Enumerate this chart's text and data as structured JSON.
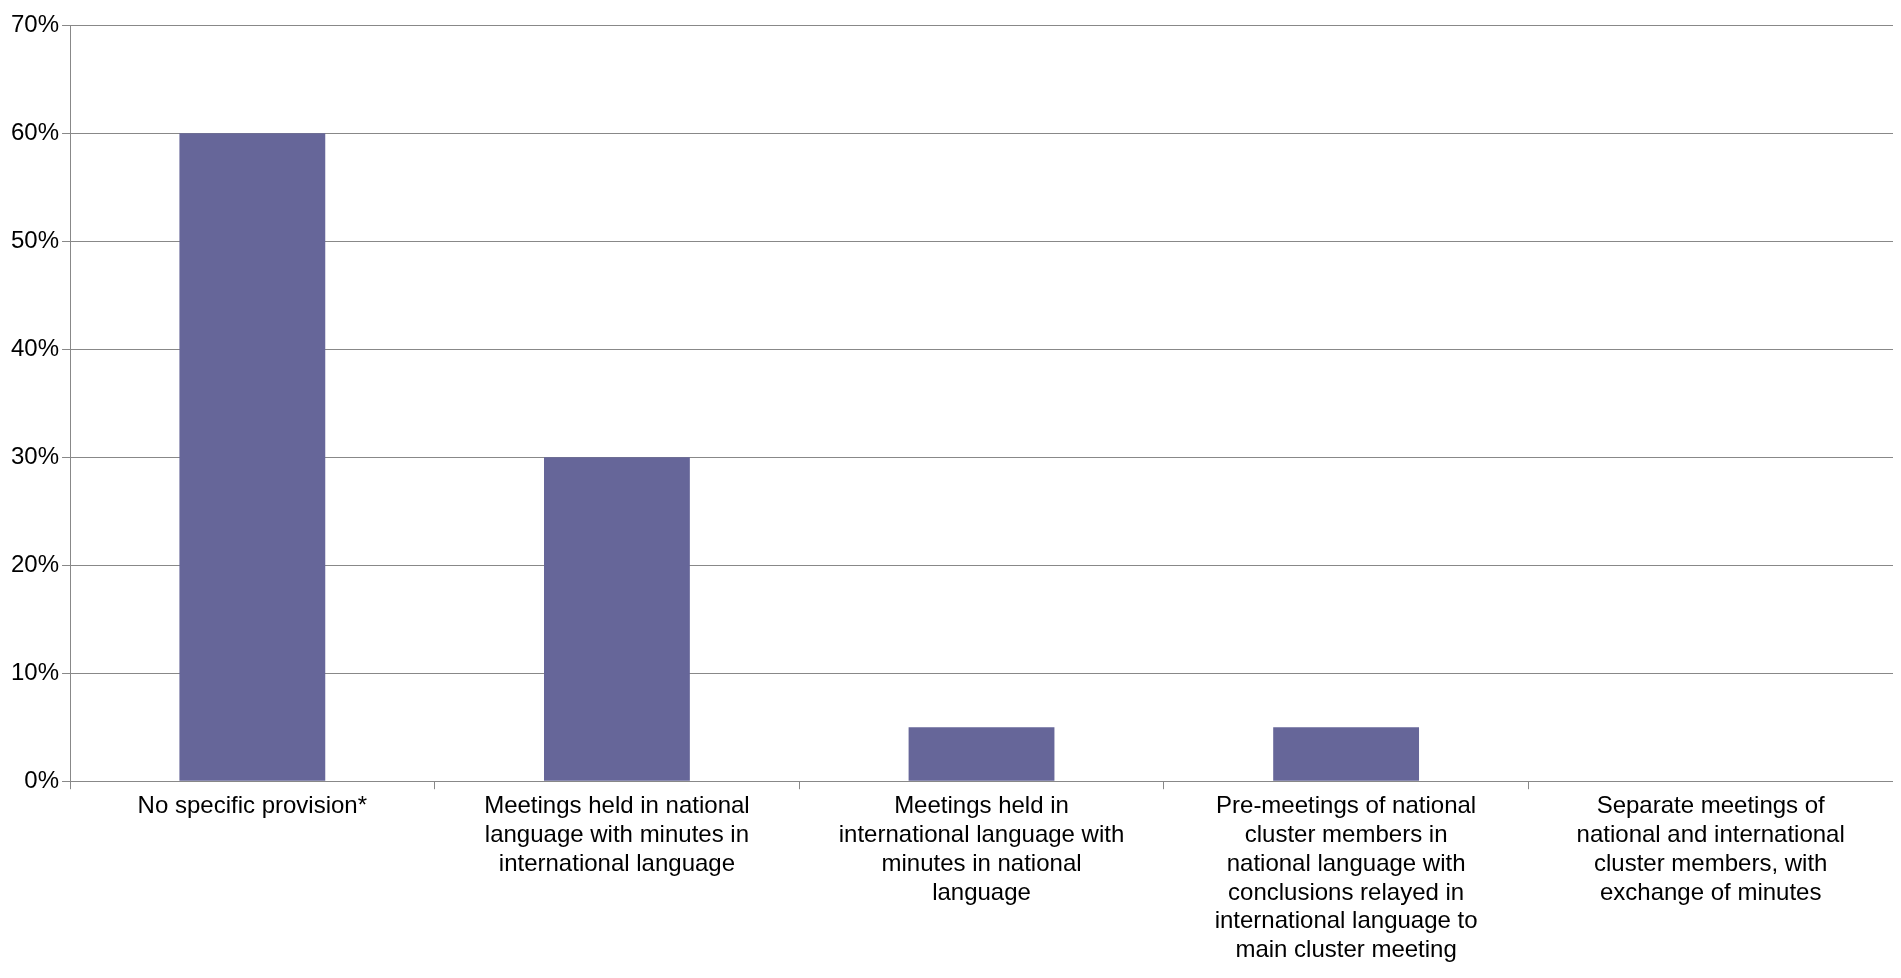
{
  "chart_data": {
    "type": "bar",
    "categories": [
      "No specific provision*",
      "Meetings held in national language with minutes in international language",
      "Meetings held in international language with minutes in national language",
      "Pre-meetings of national cluster members in national language with conclusions relayed in international language to main cluster meeting",
      "Separate meetings of national and international cluster members, with exchange of minutes"
    ],
    "values": [
      60,
      30,
      5,
      5,
      0
    ],
    "color": "#666699",
    "ylim": [
      0,
      70
    ],
    "yticks": [
      {
        "value": 0,
        "label": "0%"
      },
      {
        "value": 10,
        "label": "10%"
      },
      {
        "value": 20,
        "label": "20%"
      },
      {
        "value": 30,
        "label": "30%"
      },
      {
        "value": 40,
        "label": "40%"
      },
      {
        "value": 50,
        "label": "50%"
      },
      {
        "value": 60,
        "label": "60%"
      },
      {
        "value": 70,
        "label": "70%"
      }
    ],
    "grid": "y",
    "legend": false
  }
}
